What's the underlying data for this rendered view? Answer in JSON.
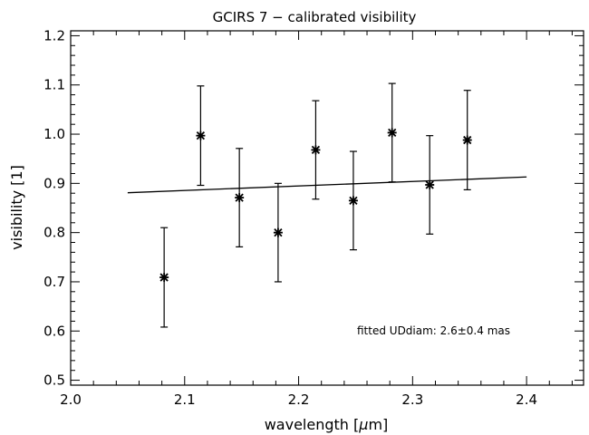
{
  "chart_data": {
    "type": "scatter",
    "title": "GCIRS 7 − calibrated visibility",
    "xlabel_prefix": "wavelength [",
    "xlabel_mu": "μ",
    "xlabel_suffix": "m]",
    "ylabel": "visibility [1]",
    "xlim": [
      2.0,
      2.45
    ],
    "ylim": [
      0.49,
      1.21
    ],
    "x_ticks": [
      2.0,
      2.1,
      2.2,
      2.3,
      2.4
    ],
    "x_tick_labels": [
      "2.0",
      "2.1",
      "2.2",
      "2.3",
      "2.4"
    ],
    "x_minor_step": 0.02,
    "y_ticks": [
      0.5,
      0.6,
      0.7,
      0.8,
      0.9,
      1.0,
      1.1,
      1.2
    ],
    "y_tick_labels": [
      "0.5",
      "0.6",
      "0.7",
      "0.8",
      "0.9",
      "1.0",
      "1.1",
      "1.2"
    ],
    "y_minor_step": 0.02,
    "points": [
      {
        "x": 2.082,
        "y": 0.709,
        "err": 0.101
      },
      {
        "x": 2.114,
        "y": 0.997,
        "err": 0.101
      },
      {
        "x": 2.148,
        "y": 0.871,
        "err": 0.1
      },
      {
        "x": 2.182,
        "y": 0.8,
        "err": 0.1
      },
      {
        "x": 2.215,
        "y": 0.968,
        "err": 0.1
      },
      {
        "x": 2.248,
        "y": 0.865,
        "err": 0.1
      },
      {
        "x": 2.282,
        "y": 1.003,
        "err": 0.1
      },
      {
        "x": 2.315,
        "y": 0.897,
        "err": 0.1
      },
      {
        "x": 2.348,
        "y": 0.988,
        "err": 0.101
      }
    ],
    "fit_line": {
      "x": [
        2.05,
        2.4
      ],
      "y": [
        0.881,
        0.913
      ]
    },
    "annotation": "fitted UDdiam: 2.6±0.4 mas",
    "grid": false
  }
}
